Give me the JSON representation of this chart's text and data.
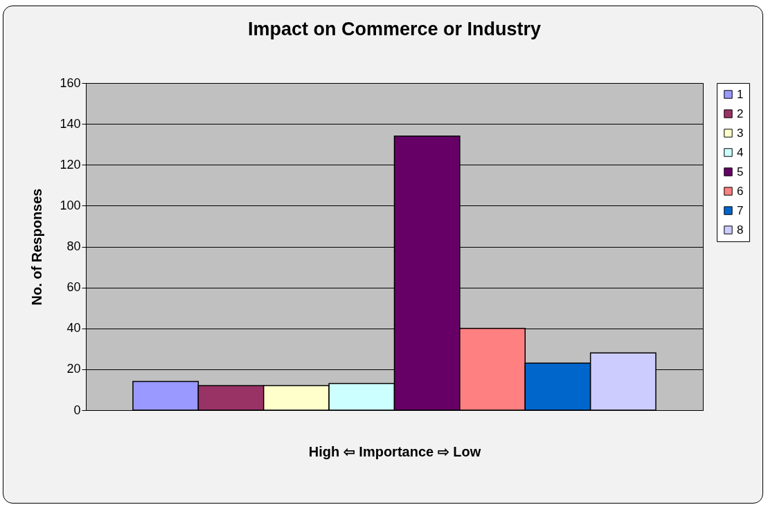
{
  "chart_data": {
    "type": "bar",
    "title": "Impact on Commerce or Industry",
    "xlabel": "High ⇦ Importance ⇨ Low",
    "ylabel": "No. of Responses",
    "categories": [
      null
    ],
    "series": [
      {
        "name": "1",
        "color": "#9999ff",
        "values": [
          14
        ]
      },
      {
        "name": "2",
        "color": "#993366",
        "values": [
          12
        ]
      },
      {
        "name": "3",
        "color": "#ffffcc",
        "values": [
          12
        ]
      },
      {
        "name": "4",
        "color": "#ccffff",
        "values": [
          13
        ]
      },
      {
        "name": "5",
        "color": "#660066",
        "values": [
          134
        ]
      },
      {
        "name": "6",
        "color": "#ff8080",
        "values": [
          40
        ]
      },
      {
        "name": "7",
        "color": "#0066cc",
        "values": [
          23
        ]
      },
      {
        "name": "8",
        "color": "#ccccff",
        "values": [
          28
        ]
      }
    ],
    "ylim": [
      0,
      160
    ],
    "yticks": [
      0,
      20,
      40,
      60,
      80,
      100,
      120,
      140,
      160
    ],
    "grid": "y",
    "legend": "right"
  }
}
